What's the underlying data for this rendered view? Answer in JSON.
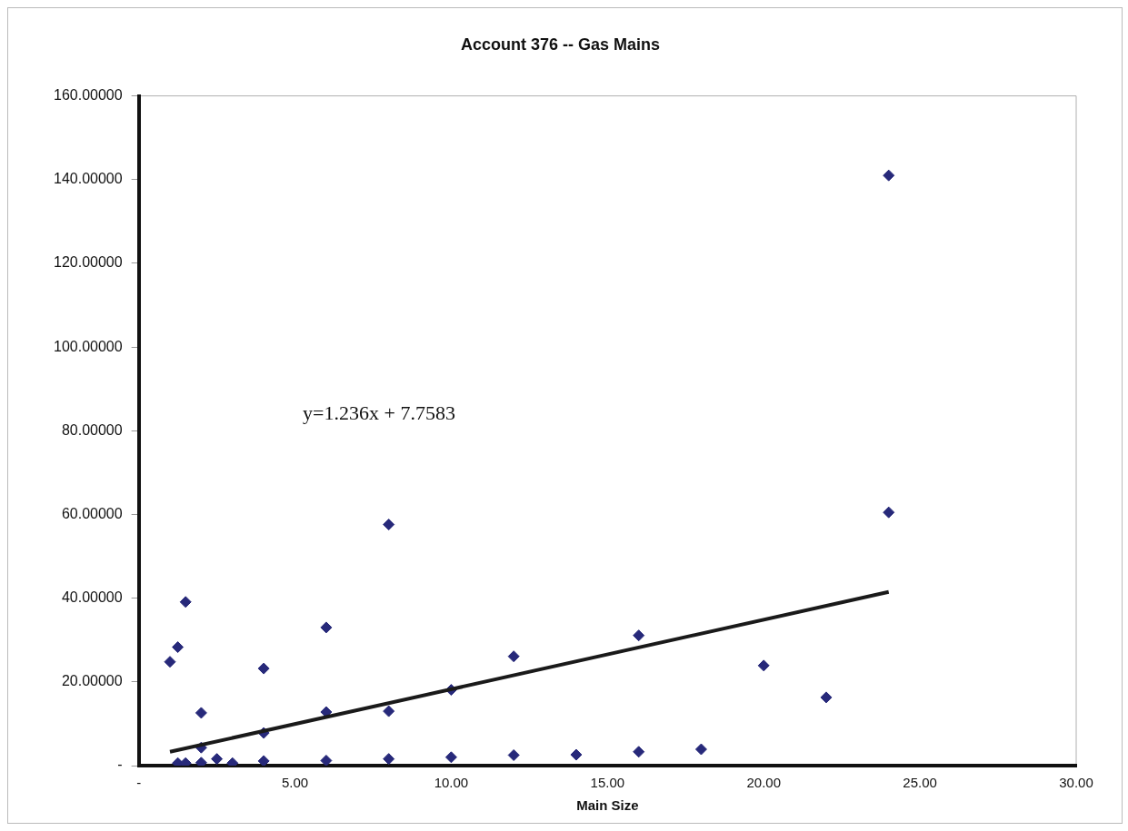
{
  "chart_data": {
    "type": "scatter",
    "title": "Account 376 -- Gas Mains",
    "xlabel": "Main Size",
    "annotations": [
      "y=1.236x + 7.7583"
    ],
    "xlim": [
      0,
      30
    ],
    "xticks": [
      {
        "value": 0,
        "label": "-"
      },
      {
        "value": 5,
        "label": "5.00"
      },
      {
        "value": 10,
        "label": "10.00"
      },
      {
        "value": 15,
        "label": "15.00"
      },
      {
        "value": 20,
        "label": "20.00"
      },
      {
        "value": 25,
        "label": "25.00"
      },
      {
        "value": 30,
        "label": "30.00"
      }
    ],
    "ylim": [
      0,
      160
    ],
    "yticks": [
      {
        "value": 0,
        "label": "-"
      },
      {
        "value": 20,
        "label": "20.00000"
      },
      {
        "value": 40,
        "label": "40.00000"
      },
      {
        "value": 60,
        "label": "60.00000"
      },
      {
        "value": 80,
        "label": "80.00000"
      },
      {
        "value": 100,
        "label": "100.00000"
      },
      {
        "value": 120,
        "label": "120.00000"
      },
      {
        "value": 140,
        "label": "140.00000"
      },
      {
        "value": 160,
        "label": "160.00000"
      }
    ],
    "grid": false,
    "legend": false,
    "marker": "diamond",
    "series": [
      {
        "type": "scatter",
        "color": "#27297a",
        "x": [
          1,
          1.25,
          1.5,
          1.25,
          1.5,
          2,
          2,
          2,
          2.5,
          3,
          4,
          4,
          4,
          6,
          6,
          6,
          8,
          8,
          8,
          10,
          10,
          12,
          12,
          14,
          16,
          16,
          18,
          20,
          22,
          24,
          24
        ],
        "values": [
          24.8,
          28.3,
          39.1,
          0.6,
          0.6,
          12.6,
          4.3,
          0.7,
          1.6,
          0.6,
          1.1,
          7.8,
          23.2,
          33.0,
          12.8,
          1.2,
          57.6,
          13.0,
          1.6,
          18.1,
          2.0,
          26.1,
          2.5,
          2.6,
          3.3,
          31.1,
          3.9,
          23.9,
          16.3,
          60.5,
          141.0
        ]
      },
      {
        "type": "line",
        "color": "#1a1a1a",
        "line_style": "solid",
        "marker": "none",
        "x": [
          1,
          24
        ],
        "values": [
          3.3,
          41.5
        ]
      }
    ]
  }
}
